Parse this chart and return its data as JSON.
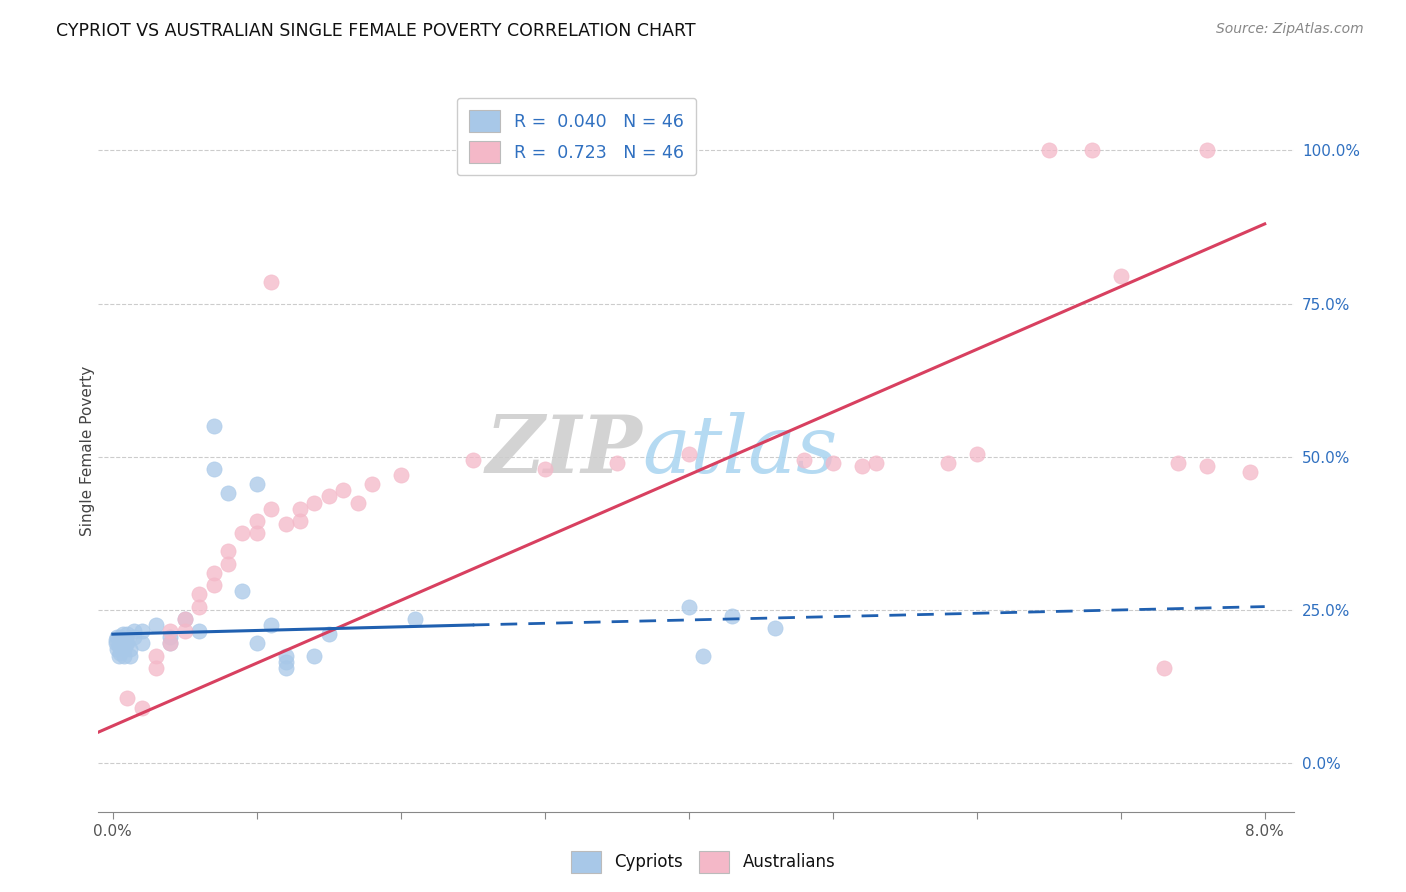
{
  "title": "CYPRIOT VS AUSTRALIAN SINGLE FEMALE POVERTY CORRELATION CHART",
  "source": "Source: ZipAtlas.com",
  "ylabel": "Single Female Poverty",
  "legend_cypriot": {
    "R": "0.040",
    "N": "46"
  },
  "legend_australian": {
    "R": "0.723",
    "N": "46"
  },
  "watermark_zip": "ZIP",
  "watermark_atlas": "atlas",
  "background_color": "#ffffff",
  "cypriot_color": "#a8c8e8",
  "australian_color": "#f4b8c8",
  "cypriot_line_color": "#2060b0",
  "australian_line_color": "#d84060",
  "right_ytick_color": "#3070c0",
  "right_yticks": [
    0.0,
    0.25,
    0.5,
    0.75,
    1.0
  ],
  "right_ytick_labels": [
    "0.0%",
    "25.0%",
    "50.0%",
    "75.0%",
    "100.0%"
  ],
  "xticks": [
    0.0,
    0.01,
    0.02,
    0.03,
    0.04,
    0.05,
    0.06,
    0.07,
    0.08
  ],
  "xtick_labels": [
    "0.0%",
    "",
    "",
    "",
    "",
    "",
    "",
    "",
    "8.0%"
  ],
  "xlim": [
    -0.001,
    0.082
  ],
  "ylim": [
    -0.08,
    1.1
  ],
  "cypriot_points": [
    [
      0.0002,
      0.2
    ],
    [
      0.0002,
      0.195
    ],
    [
      0.0003,
      0.205
    ],
    [
      0.0003,
      0.185
    ],
    [
      0.0004,
      0.19
    ],
    [
      0.0004,
      0.175
    ],
    [
      0.0005,
      0.205
    ],
    [
      0.0005,
      0.18
    ],
    [
      0.0006,
      0.195
    ],
    [
      0.0006,
      0.19
    ],
    [
      0.0007,
      0.21
    ],
    [
      0.0007,
      0.2
    ],
    [
      0.0008,
      0.185
    ],
    [
      0.0008,
      0.175
    ],
    [
      0.0009,
      0.2
    ],
    [
      0.0009,
      0.195
    ],
    [
      0.001,
      0.21
    ],
    [
      0.001,
      0.195
    ],
    [
      0.0012,
      0.185
    ],
    [
      0.0012,
      0.175
    ],
    [
      0.0015,
      0.215
    ],
    [
      0.0015,
      0.205
    ],
    [
      0.002,
      0.215
    ],
    [
      0.002,
      0.195
    ],
    [
      0.003,
      0.225
    ],
    [
      0.004,
      0.205
    ],
    [
      0.004,
      0.195
    ],
    [
      0.005,
      0.235
    ],
    [
      0.006,
      0.215
    ],
    [
      0.007,
      0.48
    ],
    [
      0.007,
      0.55
    ],
    [
      0.008,
      0.44
    ],
    [
      0.009,
      0.28
    ],
    [
      0.01,
      0.455
    ],
    [
      0.01,
      0.195
    ],
    [
      0.011,
      0.225
    ],
    [
      0.012,
      0.175
    ],
    [
      0.012,
      0.165
    ],
    [
      0.012,
      0.155
    ],
    [
      0.014,
      0.175
    ],
    [
      0.015,
      0.21
    ],
    [
      0.021,
      0.235
    ],
    [
      0.04,
      0.255
    ],
    [
      0.041,
      0.175
    ],
    [
      0.043,
      0.24
    ],
    [
      0.046,
      0.22
    ]
  ],
  "australian_points": [
    [
      0.001,
      0.105
    ],
    [
      0.002,
      0.09
    ],
    [
      0.003,
      0.175
    ],
    [
      0.003,
      0.155
    ],
    [
      0.004,
      0.215
    ],
    [
      0.004,
      0.195
    ],
    [
      0.005,
      0.235
    ],
    [
      0.005,
      0.215
    ],
    [
      0.006,
      0.275
    ],
    [
      0.006,
      0.255
    ],
    [
      0.007,
      0.31
    ],
    [
      0.007,
      0.29
    ],
    [
      0.008,
      0.345
    ],
    [
      0.008,
      0.325
    ],
    [
      0.009,
      0.375
    ],
    [
      0.01,
      0.395
    ],
    [
      0.01,
      0.375
    ],
    [
      0.011,
      0.415
    ],
    [
      0.011,
      0.785
    ],
    [
      0.012,
      0.39
    ],
    [
      0.013,
      0.415
    ],
    [
      0.013,
      0.395
    ],
    [
      0.014,
      0.425
    ],
    [
      0.015,
      0.435
    ],
    [
      0.016,
      0.445
    ],
    [
      0.017,
      0.425
    ],
    [
      0.018,
      0.455
    ],
    [
      0.02,
      0.47
    ],
    [
      0.025,
      0.495
    ],
    [
      0.03,
      0.48
    ],
    [
      0.035,
      0.49
    ],
    [
      0.04,
      0.505
    ],
    [
      0.048,
      0.495
    ],
    [
      0.05,
      0.49
    ],
    [
      0.052,
      0.485
    ],
    [
      0.053,
      0.49
    ],
    [
      0.058,
      0.49
    ],
    [
      0.06,
      0.505
    ],
    [
      0.065,
      1.0
    ],
    [
      0.068,
      1.0
    ],
    [
      0.076,
      1.0
    ],
    [
      0.07,
      0.795
    ],
    [
      0.073,
      0.155
    ],
    [
      0.074,
      0.49
    ],
    [
      0.076,
      0.485
    ],
    [
      0.079,
      0.475
    ]
  ],
  "cypriot_line": {
    "x0": 0.0,
    "y0": 0.21,
    "x1": 0.025,
    "y1": 0.225,
    "x1_dash": 0.08,
    "y1_dash": 0.255
  },
  "australian_line": {
    "x0": -0.001,
    "y0": 0.05,
    "x1": 0.08,
    "y1": 0.88
  }
}
